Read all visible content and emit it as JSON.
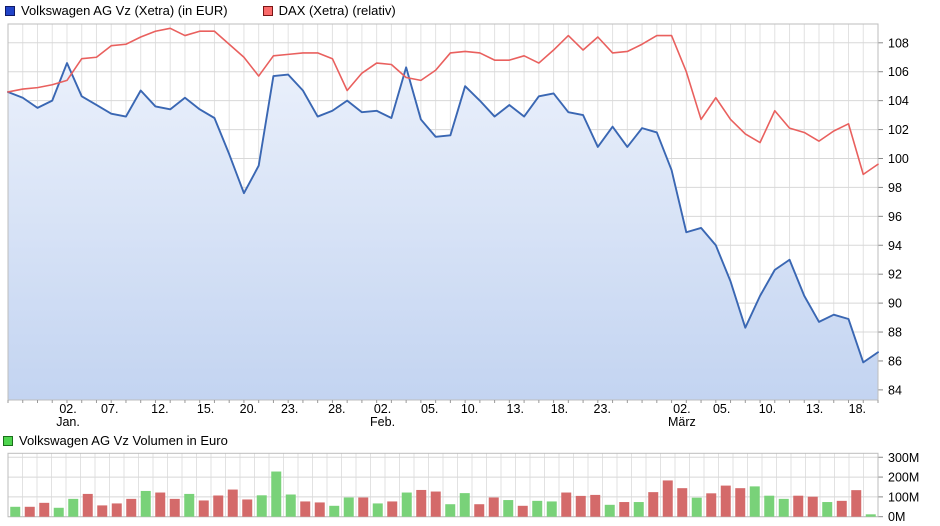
{
  "header_legend": {
    "vw": {
      "label": "Volkswagen AG Vz (Xetra) (in EUR)",
      "swatch_color": "#2143c8",
      "swatch_border": "#101a66"
    },
    "dax": {
      "label": "DAX (Xetra) (relativ)",
      "swatch_color": "#fa6a6a",
      "swatch_border": "#7a1515"
    }
  },
  "volume_legend": {
    "label": "Volkswagen AG Vz Volumen in Euro",
    "swatch_color": "#4ed44e",
    "swatch_border": "#1a6e1a"
  },
  "chart_data": [
    {
      "type": "line",
      "title": "Volkswagen AG Vz vs DAX, ca. 3 Monate (Ende Dez - Mitte Maerz)",
      "legend_position": "top",
      "grid": true,
      "ylim": [
        83.3,
        109.3
      ],
      "yticks": [
        84,
        86,
        88,
        90,
        92,
        94,
        96,
        98,
        100,
        102,
        104,
        106,
        108
      ],
      "series": [
        {
          "name": "Volkswagen AG Vz (Xetra) (in EUR)",
          "color": "#3a67b3",
          "area_fill": true,
          "values": [
            104.6,
            104.2,
            103.5,
            104.0,
            106.6,
            104.3,
            103.7,
            103.1,
            102.9,
            104.7,
            103.6,
            103.4,
            104.2,
            103.4,
            102.8,
            100.3,
            97.6,
            99.5,
            105.7,
            105.8,
            104.7,
            102.9,
            103.3,
            104.0,
            103.2,
            103.3,
            102.8,
            106.3,
            102.7,
            101.5,
            101.6,
            105.0,
            104.0,
            102.9,
            103.7,
            102.9,
            104.3,
            104.5,
            103.2,
            103.0,
            100.8,
            102.2,
            100.8,
            102.1,
            101.8,
            99.2,
            94.9,
            95.2,
            94.0,
            91.5,
            88.3,
            90.5,
            92.3,
            93.0,
            90.5,
            88.7,
            89.2,
            88.9,
            85.9,
            86.6
          ]
        },
        {
          "name": "DAX (Xetra) (relativ)",
          "color": "#e9605e",
          "area_fill": false,
          "values": [
            104.6,
            104.8,
            104.9,
            105.1,
            105.4,
            106.9,
            107.0,
            107.8,
            107.9,
            108.4,
            108.8,
            109.0,
            108.5,
            108.8,
            108.8,
            107.9,
            107.0,
            105.7,
            107.1,
            107.2,
            107.3,
            107.3,
            106.9,
            104.7,
            105.9,
            106.6,
            106.5,
            105.6,
            105.4,
            106.1,
            107.3,
            107.4,
            107.3,
            106.8,
            106.8,
            107.1,
            106.6,
            107.5,
            108.5,
            107.5,
            108.4,
            107.3,
            107.4,
            107.9,
            108.5,
            108.5,
            106.0,
            102.7,
            104.2,
            102.7,
            101.7,
            101.1,
            103.3,
            102.1,
            101.8,
            101.2,
            101.9,
            102.4,
            98.9,
            99.6
          ]
        }
      ],
      "x_labels": [
        {
          "text": "02.",
          "pos": 4.07,
          "month": "Jan."
        },
        {
          "text": "07.",
          "pos": 6.9
        },
        {
          "text": "12.",
          "pos": 10.3
        },
        {
          "text": "15.",
          "pos": 13.4
        },
        {
          "text": "20.",
          "pos": 16.3
        },
        {
          "text": "23.",
          "pos": 19.1
        },
        {
          "text": "28.",
          "pos": 22.3
        },
        {
          "text": "02.",
          "pos": 25.4,
          "month": "Feb."
        },
        {
          "text": "05.",
          "pos": 28.6
        },
        {
          "text": "10.",
          "pos": 31.3
        },
        {
          "text": "13.",
          "pos": 34.4
        },
        {
          "text": "18.",
          "pos": 37.4
        },
        {
          "text": "23.",
          "pos": 40.3
        },
        {
          "text": "02.",
          "pos": 45.7,
          "month": "März"
        },
        {
          "text": "05.",
          "pos": 48.4
        },
        {
          "text": "10.",
          "pos": 51.5
        },
        {
          "text": "13.",
          "pos": 54.7
        },
        {
          "text": "18.",
          "pos": 57.6
        }
      ],
      "area_gradient": {
        "top": "#eaf0fb",
        "bottom": "#c3d4f1"
      }
    },
    {
      "type": "bar",
      "title": "Volkswagen AG Vz Volumen in Euro",
      "grid": true,
      "ylim_millions": [
        0,
        320
      ],
      "ytick_labels": [
        "0M",
        "100M",
        "200M",
        "300M"
      ],
      "yticks_millions": [
        0,
        100,
        200,
        300
      ],
      "up_color": "#79d279",
      "down_color": "#d46a6a",
      "values_millions": [
        50,
        50,
        70,
        45,
        90,
        115,
        57,
        67,
        90,
        130,
        122,
        90,
        115,
        82,
        107,
        137,
        87,
        108,
        228,
        112,
        77,
        72,
        55,
        97,
        97,
        67,
        77,
        122,
        135,
        127,
        63,
        119,
        63,
        97,
        84,
        55,
        80,
        77,
        122,
        105,
        110,
        60,
        74,
        74,
        124,
        183,
        144,
        96,
        118,
        157,
        144,
        153,
        106,
        90,
        106,
        101,
        74,
        80,
        134,
        12
      ],
      "directions": [
        "up",
        "down",
        "down",
        "up",
        "up",
        "down",
        "down",
        "down",
        "down",
        "up",
        "down",
        "down",
        "up",
        "down",
        "down",
        "down",
        "down",
        "up",
        "up",
        "up",
        "down",
        "down",
        "up",
        "up",
        "down",
        "up",
        "down",
        "up",
        "down",
        "down",
        "up",
        "up",
        "down",
        "down",
        "up",
        "down",
        "up",
        "up",
        "down",
        "down",
        "down",
        "up",
        "down",
        "up",
        "down",
        "down",
        "down",
        "up",
        "down",
        "down",
        "down",
        "up",
        "up",
        "up",
        "down",
        "down",
        "up",
        "down",
        "down",
        "up"
      ]
    }
  ]
}
